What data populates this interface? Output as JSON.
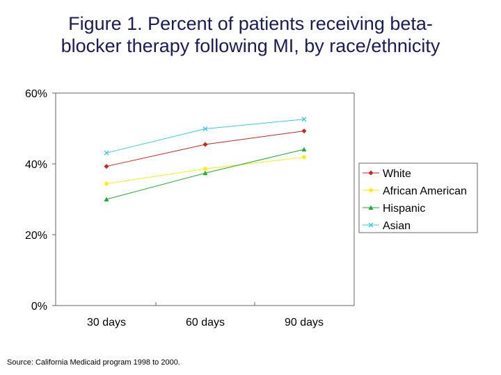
{
  "title_line1": "Figure 1.  Percent of patients receiving beta-",
  "title_line2": "blocker therapy following MI, by race/ethnicity",
  "source": "Source: California Medicaid program 1998 to 2000.",
  "chart_data": {
    "type": "line",
    "categories": [
      "30 days",
      "60 days",
      "90 days"
    ],
    "ylim": [
      0,
      60
    ],
    "yticks": [
      0,
      20,
      40,
      60
    ],
    "ytick_labels": [
      "0%",
      "20%",
      "40%",
      "60%"
    ],
    "legend_position": "right",
    "grid": false,
    "series": [
      {
        "name": "White",
        "values": [
          39.3,
          45.5,
          49.3
        ],
        "color": "#cc2222",
        "marker": "diamond"
      },
      {
        "name": "African American",
        "values": [
          34.4,
          38.6,
          41.9
        ],
        "color": "#ffee00",
        "marker": "square"
      },
      {
        "name": "Hispanic",
        "values": [
          30.0,
          37.4,
          44.1
        ],
        "color": "#22aa33",
        "marker": "triangle"
      },
      {
        "name": "Asian",
        "values": [
          43.1,
          49.9,
          52.6
        ],
        "color": "#33ccdd",
        "marker": "x"
      }
    ]
  }
}
